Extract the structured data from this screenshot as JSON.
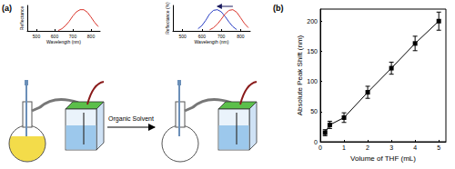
{
  "panel_labels": [
    "(a)",
    "(b)"
  ],
  "annotation": "Organic Solvent",
  "chart_data": [
    {
      "type": "line",
      "x_label": "Wavelength (nm)",
      "y_label": "Reflectance",
      "x": [
        580,
        600,
        620,
        640,
        660,
        680,
        700,
        720,
        740,
        760,
        780,
        800,
        820,
        840
      ],
      "series": [
        {
          "color": "#d9342b",
          "values": [
            null,
            null,
            0.02,
            0.1,
            0.25,
            0.45,
            0.7,
            0.9,
            1.0,
            1.0,
            0.88,
            0.65,
            0.4,
            0.2
          ]
        }
      ],
      "xlim": [
        450,
        850
      ],
      "xticks": [
        500,
        600,
        700,
        800
      ],
      "ylim": [
        0,
        1.2
      ],
      "tick_labels": "x",
      "grid": false
    },
    {
      "type": "line",
      "x_label": "Wavelength (nm)",
      "y_label": "Reflectance (%)",
      "x": [
        580,
        600,
        620,
        640,
        660,
        680,
        700,
        720,
        740,
        760,
        780,
        800,
        820,
        840
      ],
      "series": [
        {
          "color": "#2a3fc4",
          "values": [
            0.1,
            0.25,
            0.5,
            0.8,
            0.97,
            1.0,
            0.9,
            0.68,
            0.42,
            0.2,
            0.06,
            null,
            null,
            null
          ]
        },
        {
          "color": "#d9342b",
          "values": [
            null,
            null,
            null,
            0.05,
            0.15,
            0.32,
            0.55,
            0.8,
            0.97,
            1.0,
            0.88,
            0.62,
            0.35,
            0.15
          ]
        }
      ],
      "xlim": [
        450,
        850
      ],
      "xticks": [
        500,
        600,
        700,
        800
      ],
      "ylim": [
        0,
        1.2
      ],
      "tick_labels": "x",
      "grid": false
    },
    {
      "type": "line",
      "x_label": "Volume of THF (mL)",
      "y_label": "Absolute Peak Shift (nm)",
      "x": [
        0.2,
        0.4,
        1,
        2,
        3,
        4,
        5
      ],
      "values": [
        15,
        28,
        40,
        82,
        122,
        163,
        200
      ],
      "errors": [
        5,
        6,
        8,
        10,
        10,
        12,
        15
      ],
      "color": "#000000",
      "marker": "square",
      "line_style": "solid",
      "xlim": [
        0,
        5.3
      ],
      "xticks": [
        0,
        1,
        2,
        3,
        4,
        5
      ],
      "ylim": [
        0,
        220
      ],
      "yticks": [
        0,
        50,
        100,
        150,
        200
      ],
      "grid": false
    }
  ]
}
